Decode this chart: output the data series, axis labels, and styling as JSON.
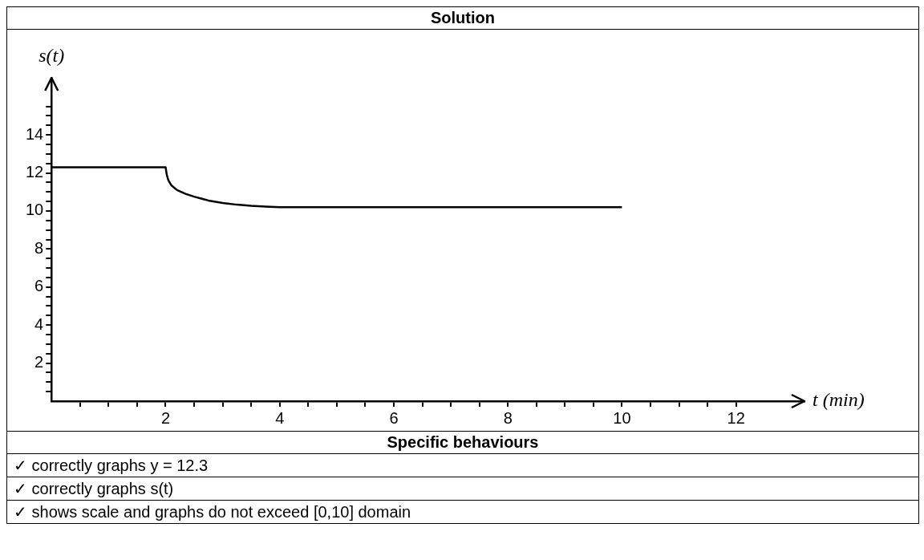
{
  "chart_data": {
    "type": "line",
    "title": "Solution",
    "subtitle": "Specific behaviours",
    "xlabel": "t (min)",
    "ylabel": "s(t)",
    "x": [
      0,
      2,
      2.02,
      2.05,
      2.1,
      2.2,
      2.35,
      2.5,
      2.75,
      3,
      3.25,
      3.5,
      3.75,
      4,
      5,
      6,
      8,
      10
    ],
    "series": [
      {
        "color": "#000000",
        "values": [
          12.3,
          12.3,
          11.9,
          11.6,
          11.35,
          11.1,
          10.9,
          10.75,
          10.55,
          10.42,
          10.33,
          10.27,
          10.23,
          10.2,
          10.2,
          10.2,
          10.2,
          10.2
        ]
      }
    ],
    "xlim": [
      0,
      13.2
    ],
    "ylim": [
      0,
      17
    ],
    "xticks": [
      {
        "value": 0.5,
        "label": null
      },
      {
        "value": 1,
        "label": null
      },
      {
        "value": 1.5,
        "label": null
      },
      2,
      {
        "value": 2.5,
        "label": null
      },
      {
        "value": 3,
        "label": null
      },
      {
        "value": 3.5,
        "label": null
      },
      4,
      {
        "value": 4.5,
        "label": null
      },
      {
        "value": 5,
        "label": null
      },
      {
        "value": 5.5,
        "label": null
      },
      6,
      {
        "value": 6.5,
        "label": null
      },
      {
        "value": 7,
        "label": null
      },
      {
        "value": 7.5,
        "label": null
      },
      8,
      {
        "value": 8.5,
        "label": null
      },
      {
        "value": 9,
        "label": null
      },
      {
        "value": 9.5,
        "label": null
      },
      10,
      {
        "value": 10.5,
        "label": null
      },
      {
        "value": 11,
        "label": null
      },
      {
        "value": 11.5,
        "label": null
      },
      12
    ],
    "yticks": [
      {
        "value": 0.5,
        "label": null
      },
      {
        "value": 1,
        "label": null
      },
      {
        "value": 1.5,
        "label": null
      },
      2,
      {
        "value": 2.5,
        "label": null
      },
      {
        "value": 3,
        "label": null
      },
      {
        "value": 3.5,
        "label": null
      },
      4,
      {
        "value": 4.5,
        "label": null
      },
      {
        "value": 5,
        "label": null
      },
      {
        "value": 5.5,
        "label": null
      },
      6,
      {
        "value": 6.5,
        "label": null
      },
      {
        "value": 7,
        "label": null
      },
      {
        "value": 7.5,
        "label": null
      },
      8,
      {
        "value": 8.5,
        "label": null
      },
      {
        "value": 9,
        "label": null
      },
      {
        "value": 9.5,
        "label": null
      },
      10,
      {
        "value": 10.5,
        "label": null
      },
      {
        "value": 11,
        "label": null
      },
      {
        "value": 11.5,
        "label": null
      },
      12,
      {
        "value": 12.5,
        "label": null
      },
      {
        "value": 13,
        "label": null
      },
      {
        "value": 13.5,
        "label": null
      },
      14,
      {
        "value": 14.5,
        "label": null
      },
      {
        "value": 15,
        "label": null
      },
      {
        "value": 15.5,
        "label": null
      }
    ],
    "annotations": [
      "✓ correctly graphs  y = 12.3",
      "✓ correctly graphs s(t)",
      "✓ shows scale and graphs do not exceed [0,10] domain"
    ]
  }
}
